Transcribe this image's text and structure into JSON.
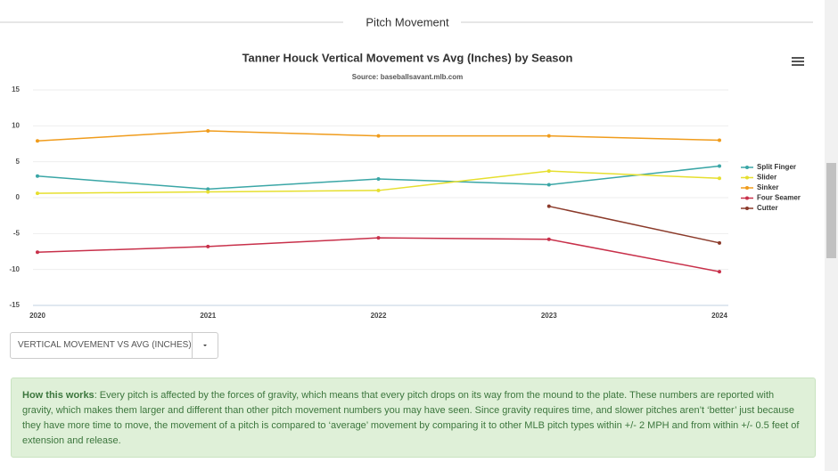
{
  "section_title": "Pitch Movement",
  "chart_data": {
    "type": "line",
    "title": "Tanner Houck Vertical Movement vs Avg (Inches) by Season",
    "subtitle": "Source: baseballsavant.mlb.com",
    "categories": [
      "2020",
      "2021",
      "2022",
      "2023",
      "2024"
    ],
    "series": [
      {
        "name": "Split Finger",
        "color": "#3aa6a6",
        "values": [
          3.0,
          1.2,
          2.6,
          1.8,
          4.4
        ]
      },
      {
        "name": "Slider",
        "color": "#e6df2e",
        "values": [
          0.6,
          0.8,
          1.0,
          3.7,
          2.7
        ]
      },
      {
        "name": "Sinker",
        "color": "#f09c1c",
        "values": [
          7.9,
          9.3,
          8.6,
          8.6,
          8.0
        ]
      },
      {
        "name": "Four Seamer",
        "color": "#c8304a",
        "values": [
          -7.6,
          -6.8,
          -5.6,
          -5.8,
          -10.3
        ]
      },
      {
        "name": "Cutter",
        "color": "#8b3a2a",
        "values": [
          null,
          null,
          null,
          -1.2,
          -6.3
        ]
      }
    ],
    "ylim": [
      -15,
      15
    ],
    "yticks": [
      -15,
      -10,
      -5,
      0,
      5,
      10,
      15
    ],
    "grid": true,
    "legend": "right"
  },
  "dropdown": {
    "label": "VERTICAL MOVEMENT VS AVG (INCHES)"
  },
  "how_this_works": {
    "label": "How this works",
    "text": ": Every pitch is affected by the forces of gravity, which means that every pitch drops on its way from the mound to the plate. These numbers are reported with gravity, which makes them larger and different than other pitch movement numbers you may have seen. Since gravity requires time, and slower pitches aren’t ‘better’ just because they have more time to move, the movement of a pitch is compared to ‘average’ movement by comparing it to other MLB pitch types within +/- 2 MPH and from within +/- 0.5 feet of extension and release."
  }
}
